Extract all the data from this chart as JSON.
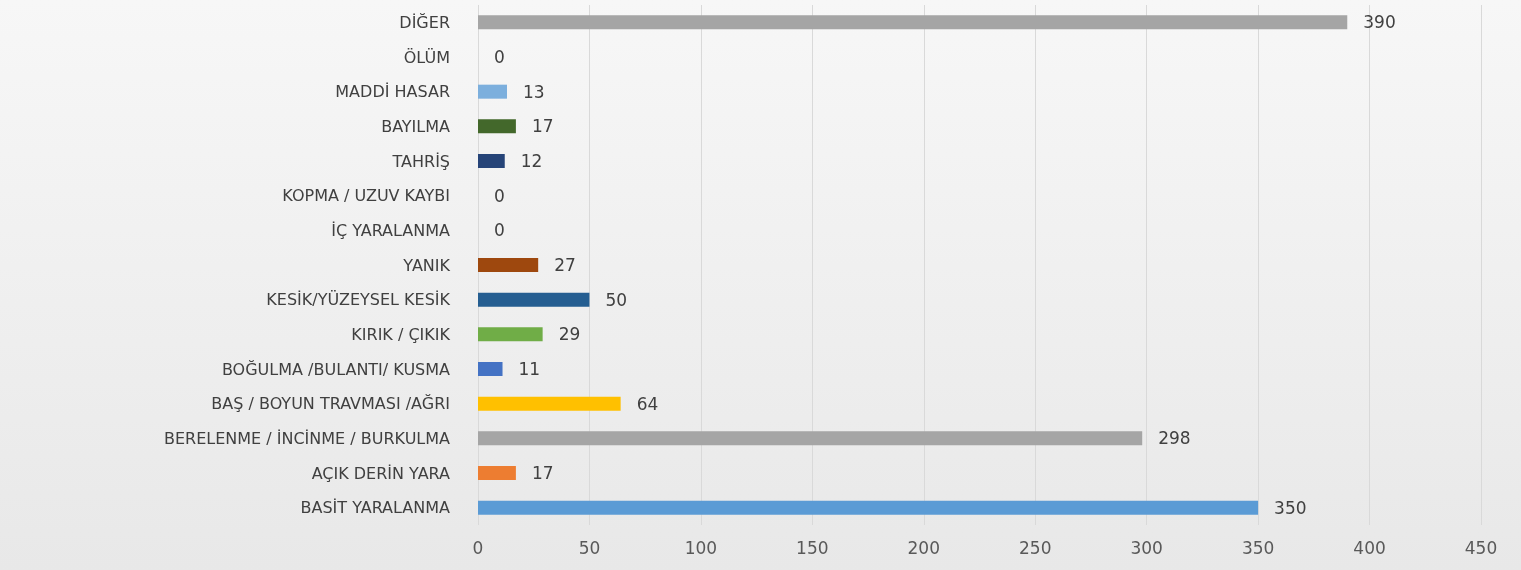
{
  "chart_data": {
    "type": "bar",
    "orientation": "horizontal",
    "categories": [
      "DİĞER",
      "ÖLÜM",
      "MADDİ HASAR",
      "BAYILMA",
      "TAHRİŞ",
      "KOPMA / UZUV KAYBI",
      "İÇ YARALANMA",
      "YANIK",
      "KESİK/YÜZEYSEL KESİK",
      "KIRIK / ÇIKIK",
      "BOĞULMA /BULANTI/ KUSMA",
      "BAŞ / BOYUN TRAVMASI /AĞRI",
      "BERELENME / İNCİNME / BURKULMA",
      "AÇIK DERİN YARA",
      "BASİT YARALANMA"
    ],
    "values": [
      390,
      0,
      13,
      17,
      12,
      0,
      0,
      27,
      50,
      29,
      11,
      64,
      298,
      17,
      350
    ],
    "colors": [
      "#a5a5a5",
      "#d9d9d9",
      "#7cafdd",
      "#43682b",
      "#264478",
      "#d9d9d9",
      "#d9d9d9",
      "#9e480e",
      "#255e91",
      "#70ad47",
      "#4472c4",
      "#ffc000",
      "#a5a5a5",
      "#ed7d31",
      "#5b9bd5"
    ],
    "xlim": [
      0,
      450
    ],
    "xticks": [
      0,
      50,
      100,
      150,
      200,
      250,
      300,
      350,
      400,
      450
    ],
    "grid": "x",
    "data_labels": true
  }
}
